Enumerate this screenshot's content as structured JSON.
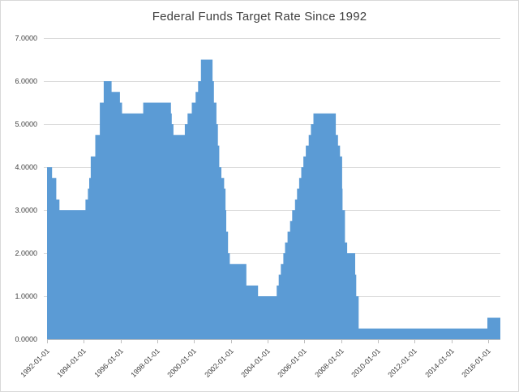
{
  "chart_data": {
    "type": "area",
    "title": "Federal Funds Target Rate Since 1992",
    "xlabel": "",
    "ylabel": "",
    "ylim": [
      0,
      7
    ],
    "x_domain": [
      "1992-01-01",
      "2016-09-01"
    ],
    "grid": "horizontal",
    "legend": "none",
    "y_ticks": [
      {
        "value": 0,
        "label": "0.0000"
      },
      {
        "value": 1,
        "label": "1.0000"
      },
      {
        "value": 2,
        "label": "2.0000"
      },
      {
        "value": 3,
        "label": "3.0000"
      },
      {
        "value": 4,
        "label": "4.0000"
      },
      {
        "value": 5,
        "label": "5.0000"
      },
      {
        "value": 6,
        "label": "6.0000"
      },
      {
        "value": 7,
        "label": "7.0000"
      }
    ],
    "x_tick_labels": [
      "1992-01-01",
      "1994-01-01",
      "1996-01-01",
      "1998-01-01",
      "2000-01-01",
      "2002-01-01",
      "2004-01-01",
      "2006-01-01",
      "2008-01-01",
      "2010-01-01",
      "2012-01-01",
      "2014-01-01",
      "2016-01-01"
    ],
    "series": [
      {
        "name": "Federal Funds Target Rate",
        "step": "after",
        "points": [
          [
            "1992-01-01",
            4.0
          ],
          [
            "1992-04-09",
            3.75
          ],
          [
            "1992-07-02",
            3.25
          ],
          [
            "1992-09-04",
            3.0
          ],
          [
            "1994-02-04",
            3.25
          ],
          [
            "1994-03-22",
            3.5
          ],
          [
            "1994-04-18",
            3.75
          ],
          [
            "1994-05-17",
            4.25
          ],
          [
            "1994-08-16",
            4.75
          ],
          [
            "1994-11-15",
            5.5
          ],
          [
            "1995-02-01",
            6.0
          ],
          [
            "1995-07-06",
            5.75
          ],
          [
            "1995-12-19",
            5.5
          ],
          [
            "1996-01-31",
            5.25
          ],
          [
            "1997-03-25",
            5.5
          ],
          [
            "1998-09-29",
            5.25
          ],
          [
            "1998-10-15",
            5.0
          ],
          [
            "1998-11-17",
            4.75
          ],
          [
            "1999-06-30",
            5.0
          ],
          [
            "1999-08-24",
            5.25
          ],
          [
            "1999-11-16",
            5.5
          ],
          [
            "2000-02-02",
            5.75
          ],
          [
            "2000-03-21",
            6.0
          ],
          [
            "2000-05-16",
            6.5
          ],
          [
            "2001-01-03",
            6.0
          ],
          [
            "2001-01-31",
            5.5
          ],
          [
            "2001-03-20",
            5.0
          ],
          [
            "2001-04-18",
            4.5
          ],
          [
            "2001-05-15",
            4.0
          ],
          [
            "2001-06-27",
            3.75
          ],
          [
            "2001-08-21",
            3.5
          ],
          [
            "2001-09-17",
            3.0
          ],
          [
            "2001-10-02",
            2.5
          ],
          [
            "2001-11-06",
            2.0
          ],
          [
            "2001-12-11",
            1.75
          ],
          [
            "2002-11-06",
            1.25
          ],
          [
            "2003-06-25",
            1.0
          ],
          [
            "2004-06-30",
            1.25
          ],
          [
            "2004-08-10",
            1.5
          ],
          [
            "2004-09-21",
            1.75
          ],
          [
            "2004-11-10",
            2.0
          ],
          [
            "2004-12-14",
            2.25
          ],
          [
            "2005-02-02",
            2.5
          ],
          [
            "2005-03-22",
            2.75
          ],
          [
            "2005-05-03",
            3.0
          ],
          [
            "2005-06-30",
            3.25
          ],
          [
            "2005-08-09",
            3.5
          ],
          [
            "2005-09-20",
            3.75
          ],
          [
            "2005-11-01",
            4.0
          ],
          [
            "2005-12-13",
            4.25
          ],
          [
            "2006-01-31",
            4.5
          ],
          [
            "2006-03-28",
            4.75
          ],
          [
            "2006-05-10",
            5.0
          ],
          [
            "2006-06-29",
            5.25
          ],
          [
            "2007-09-18",
            4.75
          ],
          [
            "2007-10-31",
            4.5
          ],
          [
            "2007-12-11",
            4.25
          ],
          [
            "2008-01-22",
            3.5
          ],
          [
            "2008-01-30",
            3.0
          ],
          [
            "2008-03-18",
            2.25
          ],
          [
            "2008-04-30",
            2.0
          ],
          [
            "2008-10-08",
            1.5
          ],
          [
            "2008-10-29",
            1.0
          ],
          [
            "2008-12-16",
            0.25
          ],
          [
            "2015-12-17",
            0.5
          ]
        ]
      }
    ],
    "colors": {
      "fill": "#5B9BD5",
      "gridline": "#D9D9D9",
      "axis": "#BFBFBF",
      "tick": "#BFBFBF",
      "text": "#404040",
      "title": "#3F3F3F",
      "background": "#FFFFFF",
      "frame_border": "#D9D9D9"
    }
  }
}
